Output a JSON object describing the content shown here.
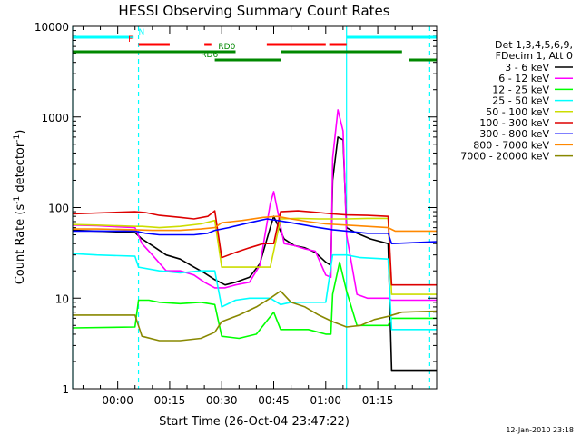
{
  "chart_data": {
    "type": "line",
    "title": "HESSI Observing Summary Count Rates",
    "xlabel": "Start Time (26-Oct-04 23:47:22)",
    "ylabel_main": "Count Rate (s",
    "ylabel_exp1": "-1",
    "ylabel_mid": " detector",
    "ylabel_exp2": "-1",
    "ylabel_end": ")",
    "y_scale": "log",
    "ylim": [
      1,
      10000
    ],
    "xlim_minutes": [
      -13,
      92
    ],
    "x_ticks": [
      {
        "label": "00:00",
        "minutes": 0
      },
      {
        "label": "00:15",
        "minutes": 15
      },
      {
        "label": "00:30",
        "minutes": 30
      },
      {
        "label": "00:45",
        "minutes": 45
      },
      {
        "label": "01:00",
        "minutes": 60
      },
      {
        "label": "01:15",
        "minutes": 75
      }
    ],
    "y_ticks": [
      {
        "label": "1",
        "value": 1
      },
      {
        "label": "10",
        "value": 10
      },
      {
        "label": "100",
        "value": 100
      },
      {
        "label": "1000",
        "value": 1000
      },
      {
        "label": "10000",
        "value": 10000
      }
    ],
    "legend_header": [
      "Det 1,3,4,5,6,9,",
      "FDecim 1, Att 0"
    ],
    "legend_placement": "right",
    "series": [
      {
        "name": "3 - 6 keV",
        "color": "#000000",
        "points": [
          [
            -13,
            56
          ],
          [
            -6,
            55
          ],
          [
            5,
            53
          ],
          [
            7,
            45
          ],
          [
            10,
            38
          ],
          [
            14,
            30
          ],
          [
            18,
            27
          ],
          [
            22,
            22
          ],
          [
            25,
            19
          ],
          [
            28,
            16
          ],
          [
            31,
            14
          ],
          [
            34,
            15
          ],
          [
            38,
            17
          ],
          [
            41,
            24
          ],
          [
            44,
            60
          ],
          [
            45,
            80
          ],
          [
            48,
            45
          ],
          [
            51,
            38
          ],
          [
            54,
            36
          ],
          [
            57,
            32
          ],
          [
            60,
            25
          ],
          [
            61.5,
            23
          ],
          [
            62,
            200
          ],
          [
            63.5,
            600
          ],
          [
            65,
            560
          ],
          [
            66,
            60
          ],
          [
            69,
            52
          ],
          [
            73,
            45
          ],
          [
            78,
            40
          ],
          [
            79,
            1.6
          ],
          [
            92,
            1.6
          ]
        ]
      },
      {
        "name": "6 - 12 keV",
        "color": "#ff00ff",
        "points": [
          [
            -13,
            64
          ],
          [
            -6,
            63
          ],
          [
            5,
            60
          ],
          [
            7,
            40
          ],
          [
            10,
            30
          ],
          [
            14,
            20
          ],
          [
            18,
            20
          ],
          [
            22,
            18
          ],
          [
            25,
            15
          ],
          [
            28,
            13
          ],
          [
            31,
            13
          ],
          [
            34,
            14
          ],
          [
            38,
            15
          ],
          [
            41,
            23
          ],
          [
            44,
            110
          ],
          [
            45,
            150
          ],
          [
            48,
            40
          ],
          [
            51,
            38
          ],
          [
            54,
            35
          ],
          [
            57,
            33
          ],
          [
            60,
            18
          ],
          [
            61.5,
            17
          ],
          [
            62,
            350
          ],
          [
            63.5,
            1200
          ],
          [
            65,
            700
          ],
          [
            66,
            50
          ],
          [
            69,
            11
          ],
          [
            72,
            10
          ],
          [
            78,
            10
          ],
          [
            79,
            9.5
          ],
          [
            92,
            9.5
          ]
        ]
      },
      {
        "name": "12 - 25 keV",
        "color": "#00ff00",
        "points": [
          [
            -13,
            4.7
          ],
          [
            5,
            4.8
          ],
          [
            6,
            9.5
          ],
          [
            9,
            9.5
          ],
          [
            12,
            9
          ],
          [
            18,
            8.7
          ],
          [
            24,
            9
          ],
          [
            28,
            8.5
          ],
          [
            30,
            3.8
          ],
          [
            35,
            3.6
          ],
          [
            40,
            4
          ],
          [
            45,
            7
          ],
          [
            47,
            4.5
          ],
          [
            55,
            4.5
          ],
          [
            60,
            4
          ],
          [
            61.5,
            4
          ],
          [
            62,
            11
          ],
          [
            64,
            25
          ],
          [
            66,
            12
          ],
          [
            69,
            5
          ],
          [
            78,
            5
          ],
          [
            79,
            6
          ],
          [
            92,
            6
          ]
        ]
      },
      {
        "name": "25 - 50 keV",
        "color": "#00ffff",
        "points": [
          [
            -13,
            31
          ],
          [
            -6,
            30
          ],
          [
            5,
            29
          ],
          [
            6,
            22
          ],
          [
            12,
            20
          ],
          [
            18,
            19
          ],
          [
            24,
            20
          ],
          [
            28,
            20
          ],
          [
            30,
            8
          ],
          [
            34,
            9.5
          ],
          [
            38,
            10
          ],
          [
            44,
            10
          ],
          [
            47,
            8.5
          ],
          [
            50,
            9
          ],
          [
            55,
            9
          ],
          [
            60,
            9
          ],
          [
            62,
            30
          ],
          [
            66,
            30
          ],
          [
            70,
            28
          ],
          [
            78,
            27
          ],
          [
            79,
            4.5
          ],
          [
            92,
            4.5
          ]
        ]
      },
      {
        "name": "50 - 100 keV",
        "color": "#ccdd00",
        "points": [
          [
            -13,
            65
          ],
          [
            -6,
            64
          ],
          [
            5,
            62
          ],
          [
            7,
            62
          ],
          [
            12,
            60
          ],
          [
            18,
            62
          ],
          [
            24,
            66
          ],
          [
            28,
            72
          ],
          [
            30,
            22
          ],
          [
            35,
            22
          ],
          [
            40,
            22
          ],
          [
            44,
            22
          ],
          [
            47,
            75
          ],
          [
            52,
            76
          ],
          [
            58,
            75
          ],
          [
            62,
            75
          ],
          [
            66,
            75
          ],
          [
            72,
            76
          ],
          [
            78,
            76
          ],
          [
            79,
            11
          ],
          [
            92,
            11
          ]
        ]
      },
      {
        "name": "100 - 300 keV",
        "color": "#dd0000",
        "points": [
          [
            -13,
            85
          ],
          [
            -6,
            87
          ],
          [
            5,
            90
          ],
          [
            8,
            88
          ],
          [
            12,
            82
          ],
          [
            18,
            78
          ],
          [
            22,
            75
          ],
          [
            26,
            80
          ],
          [
            28,
            92
          ],
          [
            30,
            28
          ],
          [
            34,
            32
          ],
          [
            38,
            36
          ],
          [
            42,
            40
          ],
          [
            45,
            40
          ],
          [
            47,
            90
          ],
          [
            52,
            92
          ],
          [
            58,
            88
          ],
          [
            62,
            85
          ],
          [
            66,
            83
          ],
          [
            72,
            82
          ],
          [
            78,
            80
          ],
          [
            79,
            14
          ],
          [
            92,
            14
          ]
        ]
      },
      {
        "name": "300 - 800 keV",
        "color": "#0000ff",
        "points": [
          [
            -13,
            55
          ],
          [
            -6,
            55
          ],
          [
            5,
            55
          ],
          [
            8,
            52
          ],
          [
            12,
            50
          ],
          [
            18,
            50
          ],
          [
            22,
            50
          ],
          [
            26,
            52
          ],
          [
            28,
            56
          ],
          [
            32,
            60
          ],
          [
            38,
            68
          ],
          [
            43,
            75
          ],
          [
            46,
            72
          ],
          [
            50,
            68
          ],
          [
            54,
            64
          ],
          [
            58,
            60
          ],
          [
            62,
            57
          ],
          [
            66,
            55
          ],
          [
            72,
            52
          ],
          [
            78,
            52
          ],
          [
            79,
            40
          ],
          [
            92,
            42
          ]
        ]
      },
      {
        "name": "800 - 7000 keV",
        "color": "#ff8800",
        "points": [
          [
            -13,
            58
          ],
          [
            -6,
            58
          ],
          [
            5,
            57
          ],
          [
            10,
            56
          ],
          [
            18,
            56
          ],
          [
            24,
            58
          ],
          [
            28,
            60
          ],
          [
            30,
            68
          ],
          [
            36,
            72
          ],
          [
            42,
            78
          ],
          [
            46,
            80
          ],
          [
            50,
            75
          ],
          [
            55,
            70
          ],
          [
            60,
            66
          ],
          [
            66,
            64
          ],
          [
            72,
            62
          ],
          [
            78,
            60
          ],
          [
            80,
            55
          ],
          [
            92,
            55
          ]
        ]
      },
      {
        "name": "7000 - 20000 keV",
        "color": "#888800",
        "points": [
          [
            -13,
            6.5
          ],
          [
            -6,
            6.5
          ],
          [
            5,
            6.5
          ],
          [
            7,
            3.8
          ],
          [
            12,
            3.4
          ],
          [
            18,
            3.4
          ],
          [
            24,
            3.6
          ],
          [
            28,
            4.2
          ],
          [
            30,
            5.5
          ],
          [
            35,
            6.5
          ],
          [
            40,
            8
          ],
          [
            44,
            10
          ],
          [
            47,
            12
          ],
          [
            50,
            9
          ],
          [
            54,
            8
          ],
          [
            58,
            6.5
          ],
          [
            62,
            5.5
          ],
          [
            66,
            4.8
          ],
          [
            70,
            5
          ],
          [
            74,
            5.8
          ],
          [
            78,
            6.3
          ],
          [
            82,
            7
          ],
          [
            92,
            7.2
          ]
        ]
      }
    ],
    "flag_bars": [
      {
        "label": "N",
        "color": "#00ffff",
        "segments": [
          [
            -13,
            4.6
          ],
          [
            66,
            92
          ]
        ],
        "label_at": 6
      },
      {
        "label": "F",
        "color": "#ff0000",
        "segments": [
          [
            6,
            15
          ],
          [
            25,
            27
          ],
          [
            43,
            60
          ],
          [
            61,
            66
          ]
        ],
        "label_at": 3
      },
      {
        "label": "RD0",
        "color": "#008800",
        "segments": [
          [
            -13,
            34
          ]
        ],
        "label_at": 29
      },
      {
        "label": "RD0",
        "color": "#008800",
        "segments": [
          [
            47,
            82
          ]
        ],
        "label_at": null
      },
      {
        "label": "RD6",
        "color": "#008800",
        "segments": [
          [
            28,
            47
          ],
          [
            84,
            92
          ]
        ],
        "label_at": 24
      }
    ],
    "vlines": [
      {
        "minutes": -13,
        "color": "#00ffff",
        "style": "solid"
      },
      {
        "minutes": 6,
        "color": "#00ffff",
        "style": "dashed"
      },
      {
        "minutes": 66,
        "color": "#00ffff",
        "style": "solid"
      },
      {
        "minutes": 90,
        "color": "#00ffff",
        "style": "dashed"
      }
    ],
    "timestamp": "12-Jan-2010 23:18"
  }
}
